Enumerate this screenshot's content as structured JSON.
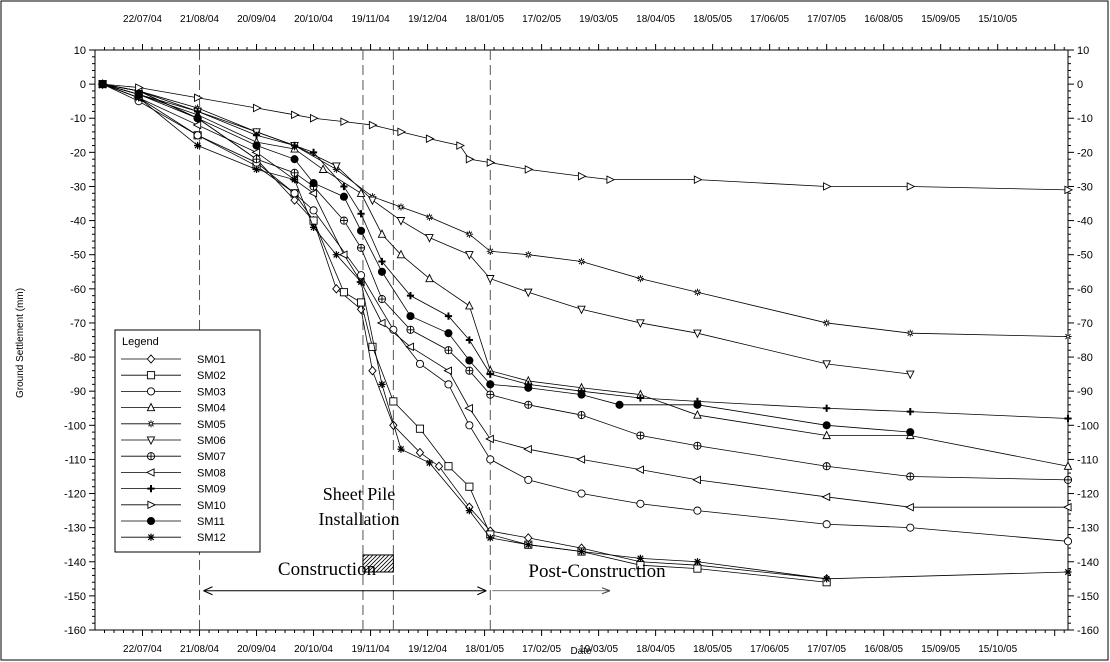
{
  "chart_data": {
    "type": "line",
    "xlabel": "Date",
    "ylabel": "Ground Settlement (mm)",
    "x_ticks": [
      "22/07/04",
      "21/08/04",
      "20/09/04",
      "20/10/04",
      "19/11/04",
      "19/12/04",
      "18/01/05",
      "17/02/05",
      "19/03/05",
      "18/04/05",
      "18/05/05",
      "17/06/05",
      "17/07/05",
      "16/08/05",
      "15/09/05",
      "15/10/05"
    ],
    "xlim": [
      "2004-06-27",
      "2005-11-21"
    ],
    "ylim": [
      -160,
      10
    ],
    "y_ticks": [
      10,
      0,
      -10,
      -20,
      -30,
      -40,
      -50,
      -60,
      -70,
      -80,
      -90,
      -100,
      -110,
      -120,
      -130,
      -140,
      -150,
      -160
    ],
    "legend_title": "Legend",
    "legend_position": "lower-left",
    "grid": false,
    "annotations": {
      "sheet_pile_line1": "Sheet Pile",
      "sheet_pile_line2": "Installation",
      "construction": "Construction",
      "post_construction": "Post-Construction",
      "vlines": [
        "2004-08-21",
        "2004-11-15",
        "2004-12-01",
        "2005-01-21"
      ],
      "sheet_pile_period": [
        "2004-11-15",
        "2004-12-01"
      ],
      "construction_period": [
        "2004-08-21",
        "2005-01-21"
      ],
      "post_construction_period": [
        "2005-01-21",
        "2005-03-25"
      ]
    },
    "series": [
      {
        "name": "SM01",
        "marker": "diamond",
        "points": [
          [
            "2004-07-01",
            0
          ],
          [
            "2004-07-20",
            -2
          ],
          [
            "2004-08-20",
            -10
          ],
          [
            "2004-09-20",
            -22
          ],
          [
            "2004-10-10",
            -34
          ],
          [
            "2004-10-20",
            -40
          ],
          [
            "2004-11-01",
            -60
          ],
          [
            "2004-11-14",
            -66
          ],
          [
            "2004-11-20",
            -84
          ],
          [
            "2004-12-01",
            -100
          ],
          [
            "2004-12-15",
            -108
          ],
          [
            "2004-12-25",
            -112
          ],
          [
            "2005-01-10",
            -124
          ],
          [
            "2005-01-21",
            -131
          ],
          [
            "2005-02-10",
            -133
          ],
          [
            "2005-03-10",
            -136
          ],
          [
            "2005-04-10",
            -140
          ],
          [
            "2005-05-10",
            -141
          ],
          [
            "2005-07-17",
            -145
          ]
        ]
      },
      {
        "name": "SM02",
        "marker": "square",
        "points": [
          [
            "2004-07-01",
            0
          ],
          [
            "2004-07-20",
            -4
          ],
          [
            "2004-08-20",
            -15
          ],
          [
            "2004-09-20",
            -24
          ],
          [
            "2004-10-10",
            -32
          ],
          [
            "2004-10-20",
            -40
          ],
          [
            "2004-11-05",
            -61
          ],
          [
            "2004-11-14",
            -64
          ],
          [
            "2004-11-20",
            -77
          ],
          [
            "2004-12-01",
            -93
          ],
          [
            "2004-12-15",
            -101
          ],
          [
            "2004-12-30",
            -112
          ],
          [
            "2005-01-10",
            -118
          ],
          [
            "2005-01-21",
            -132
          ],
          [
            "2005-02-10",
            -135
          ],
          [
            "2005-03-10",
            -137
          ],
          [
            "2005-04-10",
            -141
          ],
          [
            "2005-05-10",
            -142
          ],
          [
            "2005-07-17",
            -146
          ]
        ]
      },
      {
        "name": "SM03",
        "marker": "circle",
        "points": [
          [
            "2004-07-01",
            0
          ],
          [
            "2004-07-20",
            -5
          ],
          [
            "2004-08-20",
            -15
          ],
          [
            "2004-09-20",
            -23
          ],
          [
            "2004-10-10",
            -32
          ],
          [
            "2004-10-20",
            -37
          ],
          [
            "2004-11-14",
            -56
          ],
          [
            "2004-12-01",
            -72
          ],
          [
            "2004-12-15",
            -82
          ],
          [
            "2004-12-30",
            -88
          ],
          [
            "2005-01-10",
            -100
          ],
          [
            "2005-01-21",
            -110
          ],
          [
            "2005-02-10",
            -116
          ],
          [
            "2005-03-10",
            -120
          ],
          [
            "2005-04-10",
            -123
          ],
          [
            "2005-05-10",
            -125
          ],
          [
            "2005-07-17",
            -129
          ],
          [
            "2005-08-30",
            -130
          ],
          [
            "2005-11-21",
            -134
          ]
        ]
      },
      {
        "name": "SM04",
        "marker": "triangle-up",
        "points": [
          [
            "2004-07-01",
            0
          ],
          [
            "2004-07-20",
            -3
          ],
          [
            "2004-08-20",
            -9
          ],
          [
            "2004-09-20",
            -17
          ],
          [
            "2004-10-10",
            -19
          ],
          [
            "2004-10-25",
            -25
          ],
          [
            "2004-11-14",
            -32
          ],
          [
            "2004-11-25",
            -44
          ],
          [
            "2004-12-05",
            -50
          ],
          [
            "2004-12-20",
            -57
          ],
          [
            "2005-01-10",
            -65
          ],
          [
            "2005-01-21",
            -84
          ],
          [
            "2005-02-10",
            -87
          ],
          [
            "2005-03-10",
            -89
          ],
          [
            "2005-04-10",
            -91
          ],
          [
            "2005-05-10",
            -97
          ],
          [
            "2005-07-17",
            -103
          ],
          [
            "2005-08-30",
            -103
          ],
          [
            "2005-11-21",
            -112
          ]
        ]
      },
      {
        "name": "SM05",
        "marker": "asterisk",
        "points": [
          [
            "2004-07-01",
            0
          ],
          [
            "2004-07-20",
            -2
          ],
          [
            "2004-08-20",
            -7
          ],
          [
            "2004-09-20",
            -14
          ],
          [
            "2004-10-10",
            -18
          ],
          [
            "2004-11-01",
            -25
          ],
          [
            "2004-11-20",
            -33
          ],
          [
            "2004-12-05",
            -36
          ],
          [
            "2004-12-20",
            -39
          ],
          [
            "2005-01-10",
            -44
          ],
          [
            "2005-01-21",
            -49
          ],
          [
            "2005-02-10",
            -50
          ],
          [
            "2005-03-10",
            -52
          ],
          [
            "2005-04-10",
            -57
          ],
          [
            "2005-05-10",
            -61
          ],
          [
            "2005-07-17",
            -70
          ],
          [
            "2005-08-30",
            -73
          ],
          [
            "2005-11-21",
            -74
          ]
        ]
      },
      {
        "name": "SM06",
        "marker": "triangle-down",
        "points": [
          [
            "2004-07-01",
            0
          ],
          [
            "2004-07-20",
            -3
          ],
          [
            "2004-08-20",
            -8
          ],
          [
            "2004-09-20",
            -14
          ],
          [
            "2004-10-10",
            -18
          ],
          [
            "2004-11-01",
            -24
          ],
          [
            "2004-11-20",
            -34
          ],
          [
            "2004-12-05",
            -40
          ],
          [
            "2004-12-20",
            -45
          ],
          [
            "2005-01-10",
            -50
          ],
          [
            "2005-01-21",
            -57
          ],
          [
            "2005-02-10",
            -61
          ],
          [
            "2005-03-10",
            -66
          ],
          [
            "2005-04-10",
            -70
          ],
          [
            "2005-05-10",
            -73
          ],
          [
            "2005-07-17",
            -82
          ],
          [
            "2005-08-30",
            -85
          ]
        ]
      },
      {
        "name": "SM07",
        "marker": "circle-plus",
        "points": [
          [
            "2004-07-01",
            0
          ],
          [
            "2004-07-20",
            -2
          ],
          [
            "2004-08-20",
            -10
          ],
          [
            "2004-09-20",
            -22
          ],
          [
            "2004-10-10",
            -26
          ],
          [
            "2004-10-20",
            -30
          ],
          [
            "2004-11-05",
            -40
          ],
          [
            "2004-11-14",
            -48
          ],
          [
            "2004-11-25",
            -63
          ],
          [
            "2004-12-10",
            -72
          ],
          [
            "2004-12-30",
            -78
          ],
          [
            "2005-01-10",
            -84
          ],
          [
            "2005-01-21",
            -91
          ],
          [
            "2005-02-10",
            -94
          ],
          [
            "2005-03-10",
            -97
          ],
          [
            "2005-04-10",
            -103
          ],
          [
            "2005-05-10",
            -106
          ],
          [
            "2005-07-17",
            -112
          ],
          [
            "2005-08-30",
            -115
          ],
          [
            "2005-11-21",
            -116
          ]
        ]
      },
      {
        "name": "SM08",
        "marker": "triangle-left",
        "points": [
          [
            "2004-07-01",
            0
          ],
          [
            "2004-07-20",
            -4
          ],
          [
            "2004-08-20",
            -12
          ],
          [
            "2004-09-20",
            -20
          ],
          [
            "2004-10-10",
            -28
          ],
          [
            "2004-10-20",
            -32
          ],
          [
            "2004-11-05",
            -50
          ],
          [
            "2004-11-14",
            -58
          ],
          [
            "2004-11-25",
            -70
          ],
          [
            "2004-12-10",
            -77
          ],
          [
            "2004-12-30",
            -84
          ],
          [
            "2005-01-10",
            -95
          ],
          [
            "2005-01-21",
            -104
          ],
          [
            "2005-02-10",
            -107
          ],
          [
            "2005-03-10",
            -110
          ],
          [
            "2005-04-10",
            -113
          ],
          [
            "2005-05-10",
            -116
          ],
          [
            "2005-07-17",
            -121
          ],
          [
            "2005-08-30",
            -124
          ],
          [
            "2005-11-21",
            -124
          ]
        ]
      },
      {
        "name": "SM09",
        "marker": "plus",
        "points": [
          [
            "2004-07-01",
            0
          ],
          [
            "2004-07-20",
            -2
          ],
          [
            "2004-08-20",
            -8
          ],
          [
            "2004-09-20",
            -15
          ],
          [
            "2004-10-10",
            -18
          ],
          [
            "2004-10-20",
            -20
          ],
          [
            "2004-11-05",
            -30
          ],
          [
            "2004-11-14",
            -38
          ],
          [
            "2004-11-25",
            -52
          ],
          [
            "2004-12-10",
            -62
          ],
          [
            "2004-12-30",
            -68
          ],
          [
            "2005-01-10",
            -75
          ],
          [
            "2005-01-21",
            -85
          ],
          [
            "2005-02-10",
            -88
          ],
          [
            "2005-03-10",
            -90
          ],
          [
            "2005-04-10",
            -92
          ],
          [
            "2005-05-10",
            -93
          ],
          [
            "2005-07-17",
            -95
          ],
          [
            "2005-08-30",
            -96
          ],
          [
            "2005-11-21",
            -98
          ]
        ]
      },
      {
        "name": "SM10",
        "marker": "triangle-right",
        "points": [
          [
            "2004-07-01",
            0
          ],
          [
            "2004-07-20",
            -1
          ],
          [
            "2004-08-20",
            -4
          ],
          [
            "2004-09-20",
            -7
          ],
          [
            "2004-10-10",
            -9
          ],
          [
            "2004-10-20",
            -10
          ],
          [
            "2004-11-05",
            -11
          ],
          [
            "2004-11-20",
            -12
          ],
          [
            "2004-12-05",
            -14
          ],
          [
            "2004-12-20",
            -16
          ],
          [
            "2005-01-05",
            -18
          ],
          [
            "2005-01-10",
            -22
          ],
          [
            "2005-01-21",
            -23
          ],
          [
            "2005-02-10",
            -25
          ],
          [
            "2005-03-10",
            -27
          ],
          [
            "2005-03-25",
            -28
          ],
          [
            "2005-05-10",
            -28
          ],
          [
            "2005-07-17",
            -30
          ],
          [
            "2005-08-30",
            -30
          ],
          [
            "2005-11-21",
            -31
          ]
        ]
      },
      {
        "name": "SM11",
        "marker": "filled-circle",
        "points": [
          [
            "2004-07-01",
            0
          ],
          [
            "2004-07-20",
            -3
          ],
          [
            "2004-08-20",
            -10
          ],
          [
            "2004-09-20",
            -18
          ],
          [
            "2004-10-10",
            -22
          ],
          [
            "2004-10-20",
            -29
          ],
          [
            "2004-11-05",
            -33
          ],
          [
            "2004-11-14",
            -43
          ],
          [
            "2004-11-25",
            -55
          ],
          [
            "2004-12-10",
            -68
          ],
          [
            "2004-12-30",
            -73
          ],
          [
            "2005-01-10",
            -81
          ],
          [
            "2005-01-21",
            -88
          ],
          [
            "2005-02-10",
            -89
          ],
          [
            "2005-03-10",
            -91
          ],
          [
            "2005-03-30",
            -94
          ],
          [
            "2005-05-10",
            -94
          ],
          [
            "2005-07-17",
            -100
          ],
          [
            "2005-08-30",
            -102
          ]
        ]
      },
      {
        "name": "SM12",
        "marker": "star",
        "points": [
          [
            "2004-07-01",
            0
          ],
          [
            "2004-07-20",
            -4
          ],
          [
            "2004-08-20",
            -18
          ],
          [
            "2004-09-20",
            -25
          ],
          [
            "2004-10-10",
            -28
          ],
          [
            "2004-10-20",
            -42
          ],
          [
            "2004-11-01",
            -50
          ],
          [
            "2004-11-14",
            -58
          ],
          [
            "2004-11-25",
            -88
          ],
          [
            "2004-12-05",
            -107
          ],
          [
            "2004-12-20",
            -111
          ],
          [
            "2005-01-10",
            -125
          ],
          [
            "2005-01-21",
            -133
          ],
          [
            "2005-02-10",
            -135
          ],
          [
            "2005-03-10",
            -137
          ],
          [
            "2005-04-10",
            -139
          ],
          [
            "2005-05-10",
            -140
          ],
          [
            "2005-07-17",
            -145
          ],
          [
            "2005-11-21",
            -143
          ]
        ]
      }
    ]
  }
}
